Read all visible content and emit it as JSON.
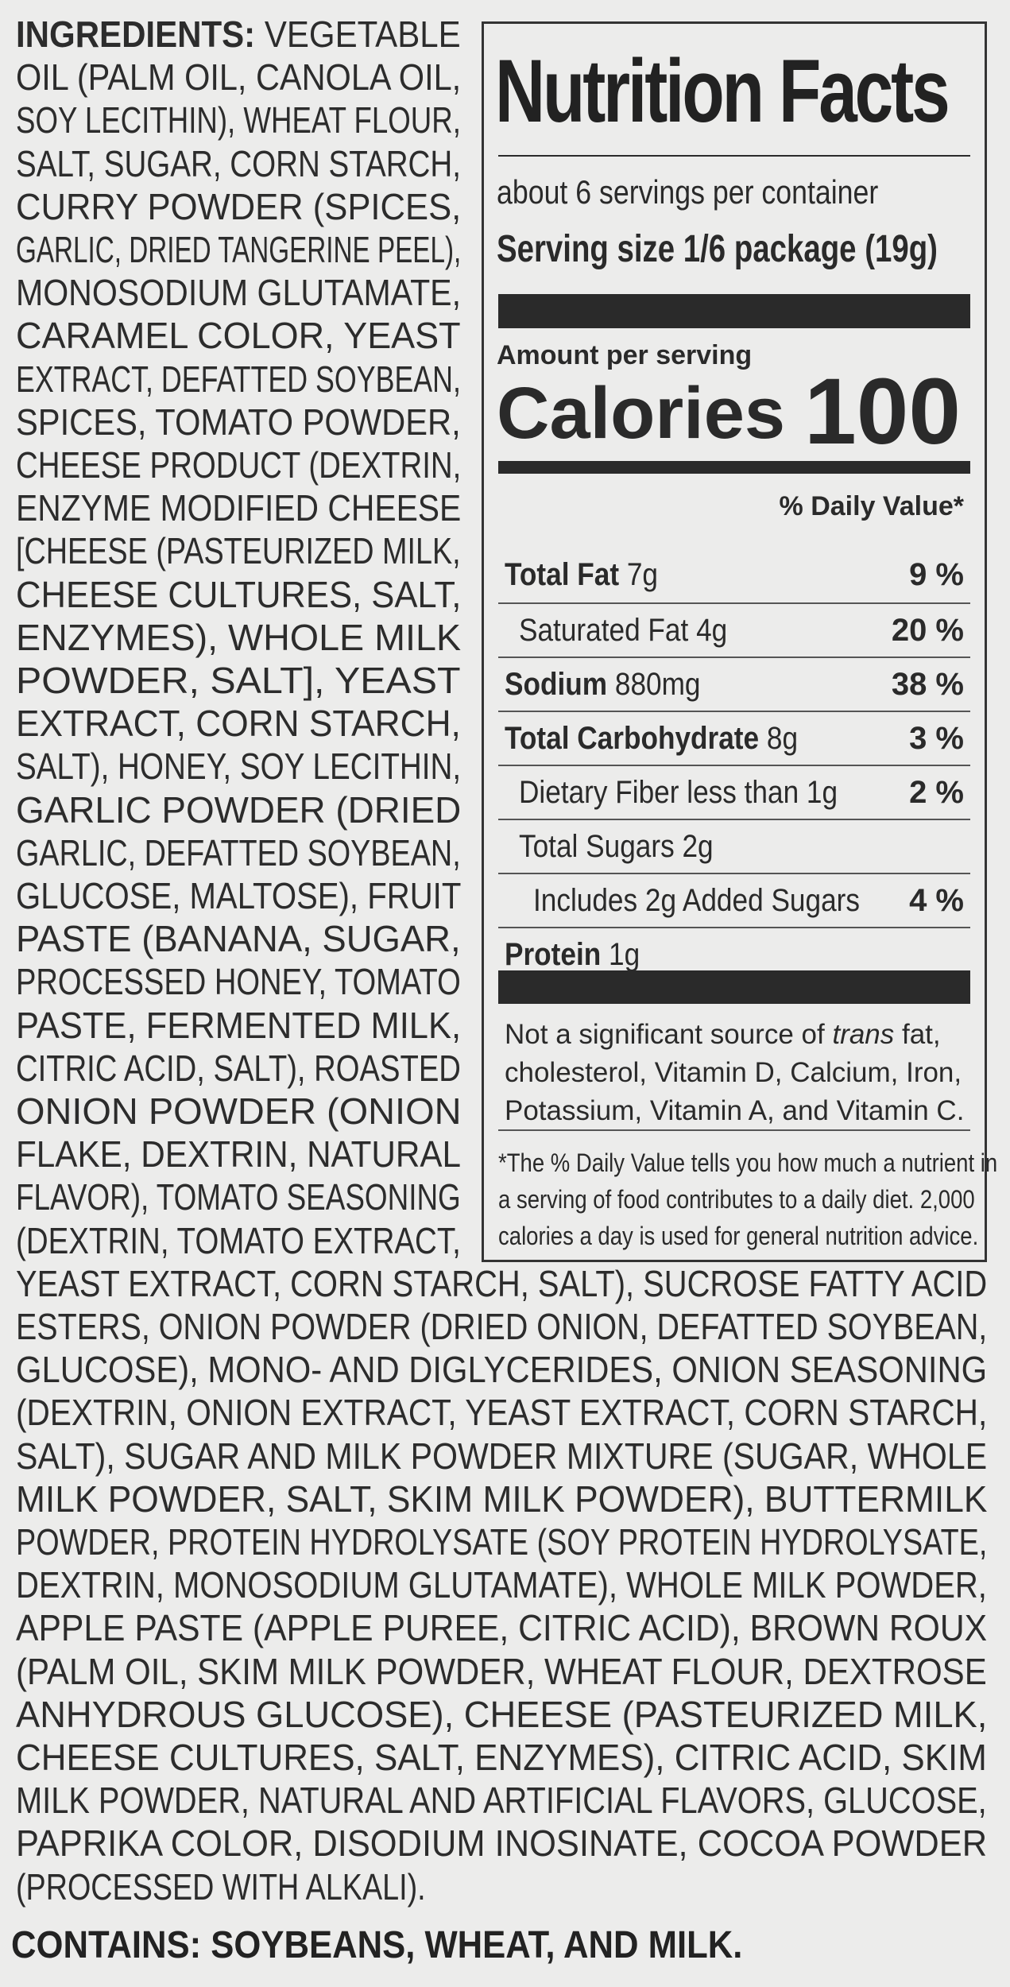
{
  "ingredients": {
    "heading": "INGREDIENTS:",
    "left_column_lines": [
      "VEGETABLE",
      "OIL (PALM OIL, CANOLA OIL,",
      "SOY LECITHIN), WHEAT FLOUR,",
      "SALT, SUGAR, CORN STARCH,",
      "CURRY POWDER (SPICES,",
      "GARLIC, DRIED TANGERINE PEEL),",
      "MONOSODIUM GLUTAMATE,",
      "CARAMEL COLOR, YEAST",
      "EXTRACT, DEFATTED SOYBEAN,",
      "SPICES, TOMATO POWDER,",
      "CHEESE PRODUCT (DEXTRIN,",
      "ENZYME MODIFIED CHEESE",
      "[CHEESE (PASTEURIZED MILK,",
      "CHEESE CULTURES, SALT,",
      "ENZYMES), WHOLE MILK",
      "POWDER, SALT], YEAST",
      "EXTRACT, CORN STARCH,",
      "SALT), HONEY, SOY LECITHIN,",
      "GARLIC POWDER (DRIED",
      "GARLIC, DEFATTED SOYBEAN,",
      "GLUCOSE, MALTOSE), FRUIT",
      "PASTE (BANANA, SUGAR,",
      "PROCESSED HONEY, TOMATO",
      "PASTE, FERMENTED MILK,",
      "CITRIC ACID, SALT), ROASTED",
      "ONION POWDER (ONION",
      "FLAKE, DEXTRIN, NATURAL",
      "FLAVOR), TOMATO SEASONING",
      "(DEXTRIN, TOMATO EXTRACT,"
    ],
    "full_width_lines": [
      "YEAST EXTRACT, CORN STARCH, SALT), SUCROSE FATTY ACID",
      "ESTERS, ONION POWDER (DRIED ONION, DEFATTED SOYBEAN,",
      "GLUCOSE), MONO- AND DIGLYCERIDES, ONION SEASONING",
      "(DEXTRIN, ONION EXTRACT, YEAST EXTRACT, CORN STARCH,",
      "SALT), SUGAR AND MILK POWDER MIXTURE (SUGAR, WHOLE",
      "MILK POWDER, SALT, SKIM MILK POWDER), BUTTERMILK",
      "POWDER, PROTEIN HYDROLYSATE (SOY PROTEIN HYDROLYSATE,",
      "DEXTRIN, MONOSODIUM GLUTAMATE), WHOLE MILK POWDER,",
      "APPLE PASTE (APPLE PUREE, CITRIC ACID), BROWN ROUX",
      "(PALM OIL, SKIM MILK POWDER, WHEAT FLOUR, DEXTROSE",
      "ANHYDROUS GLUCOSE), CHEESE (PASTEURIZED MILK,",
      "CHEESE CULTURES, SALT, ENZYMES), CITRIC ACID, SKIM",
      "MILK POWDER, NATURAL AND ARTIFICIAL FLAVORS, GLUCOSE,",
      "PAPRIKA COLOR, DISODIUM INOSINATE, COCOA POWDER",
      "(PROCESSED WITH ALKALI)."
    ],
    "contains": "CONTAINS: SOYBEANS, WHEAT, AND MILK."
  },
  "nutrition": {
    "title": "Nutrition Facts",
    "servings": "about 6 servings per container",
    "serving_size_label": "Serving size",
    "serving_size_value": "1/6 package (19g)",
    "amount_per_serving": "Amount per serving",
    "calories_label": "Calories",
    "calories_value": "100",
    "dv_header": "% Daily Value*",
    "rows": [
      {
        "name": "Total Fat",
        "amount": "7g",
        "dv": "9 %",
        "bold": true,
        "indent": 0
      },
      {
        "name": "Saturated Fat",
        "amount": "4g",
        "dv": "20 %",
        "bold": false,
        "indent": 1
      },
      {
        "name": "Sodium",
        "amount": "880mg",
        "dv": "38 %",
        "bold": true,
        "indent": 0
      },
      {
        "name": "Total Carbohydrate",
        "amount": "8g",
        "dv": "3 %",
        "bold": true,
        "indent": 0
      },
      {
        "name": "Dietary Fiber",
        "amount": "less than 1g",
        "dv": "2 %",
        "bold": false,
        "indent": 1
      },
      {
        "name": "Total Sugars",
        "amount": "2g",
        "dv": "",
        "bold": false,
        "indent": 1
      },
      {
        "name": "Includes 2g Added Sugars",
        "amount": "",
        "dv": "4 %",
        "bold": false,
        "indent": 2
      },
      {
        "name": "Protein",
        "amount": "1g",
        "dv": "",
        "bold": true,
        "indent": 0
      }
    ],
    "not_significant_pre": "Not a significant source of ",
    "not_significant_trans": "trans",
    "not_significant_post": " fat,",
    "not_significant_lines": [
      "cholesterol, Vitamin D, Calcium, Iron,",
      "Potassium, Vitamin A, and Vitamin C."
    ],
    "footnote_lines": [
      "*The % Daily Value tells you how much a nutrient in",
      "a serving of food contributes to a daily diet. 2,000",
      "calories a day is used for general nutrition advice."
    ]
  }
}
